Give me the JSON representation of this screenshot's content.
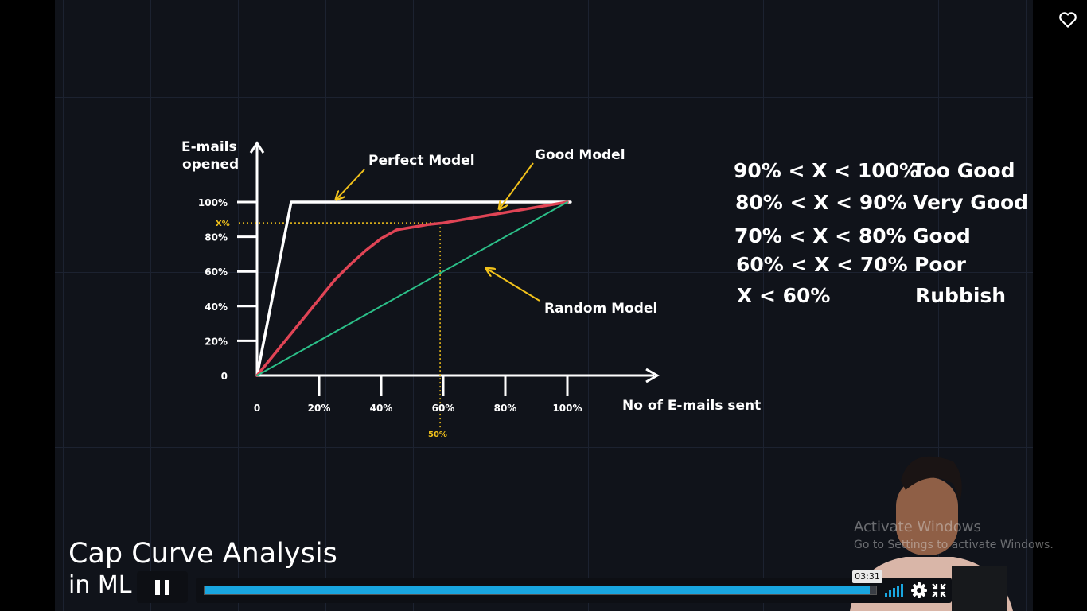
{
  "chart_data": {
    "type": "line",
    "xlabel": "No of E-mails sent",
    "ylabel_lines": [
      "E-mails",
      "opened"
    ],
    "xlim": [
      0,
      100
    ],
    "ylim": [
      0,
      100
    ],
    "x_ticks": [
      "0",
      "20%",
      "40%",
      "60%",
      "80%",
      "100%"
    ],
    "y_ticks": [
      "0",
      "20%",
      "40%",
      "60%",
      "80%",
      "100%"
    ],
    "y_tick_values": [
      0,
      20,
      40,
      60,
      80,
      100
    ],
    "x_tick_values": [
      0,
      20,
      40,
      60,
      80,
      100
    ],
    "series": [
      {
        "name": "Perfect Model",
        "color": "#ffffff",
        "x": [
          0,
          11,
          101
        ],
        "y": [
          0,
          100,
          100
        ]
      },
      {
        "name": "Good Model",
        "color": "#e04455",
        "x": [
          0,
          5,
          10,
          15,
          20,
          25,
          30,
          35,
          40,
          45,
          50,
          55,
          60,
          70,
          80,
          90,
          100
        ],
        "y": [
          0,
          11,
          22,
          33,
          44,
          55,
          64,
          72,
          79,
          84,
          85.5,
          87,
          88,
          91,
          94,
          97,
          100
        ]
      },
      {
        "name": "Random Model",
        "color": "#2bbf88",
        "x": [
          0,
          100
        ],
        "y": [
          0,
          100
        ]
      }
    ],
    "annotations": {
      "x_marker_label": "X%",
      "x_marker_value": 88,
      "x_cut_label": "50%",
      "x_cut_value": 59
    },
    "grid": false
  },
  "thresholds": [
    {
      "condition": "90% < X < 100%",
      "rating": "Too Good"
    },
    {
      "condition": "80% < X < 90%",
      "rating": "Very Good"
    },
    {
      "condition": "70% < X < 80%",
      "rating": "Good"
    },
    {
      "condition": "60% < X < 70%",
      "rating": "Poor"
    },
    {
      "condition": "X < 60%",
      "rating": "Rubbish"
    }
  ],
  "video": {
    "title": "Cap Curve Analysis",
    "subtitle": "in ML",
    "current_time": "03:31",
    "progress": 0.99
  },
  "watermark": {
    "line1": "Activate Windows",
    "line2": "Go to Settings to activate Windows."
  },
  "icons": {
    "favorite": "heart-icon",
    "play_pause": "pause-icon",
    "volume": "volume-icon",
    "settings": "gear-icon",
    "fullscreen": "exit-fullscreen-icon"
  },
  "colors": {
    "accent": "#19a6e0",
    "annotation_yellow": "#f2c21b",
    "background": "#10131a"
  }
}
